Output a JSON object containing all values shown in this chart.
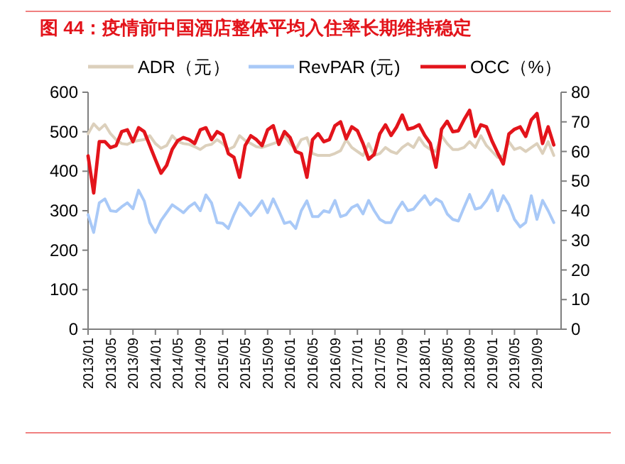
{
  "chart_data": {
    "type": "line",
    "title": "图 44：疫情前中国酒店整体平均入住率长期维持稳定",
    "categories": [
      "2013/01",
      null,
      null,
      null,
      "2013/05",
      null,
      null,
      null,
      "2013/09",
      null,
      null,
      null,
      "2014/01",
      null,
      null,
      null,
      "2014/05",
      null,
      null,
      null,
      "2014/09",
      null,
      null,
      null,
      "2015/01",
      null,
      null,
      null,
      "2015/05",
      null,
      null,
      null,
      "2015/09",
      null,
      null,
      null,
      "2016/01",
      null,
      null,
      null,
      "2016/05",
      null,
      null,
      null,
      "2016/09",
      null,
      null,
      null,
      "2017/01",
      null,
      null,
      null,
      "2017/05",
      null,
      null,
      null,
      "2017/09",
      null,
      null,
      null,
      "2018/01",
      null,
      null,
      null,
      "2018/05",
      null,
      null,
      null,
      "2018/09",
      null,
      null,
      null,
      "2019/01",
      null,
      null,
      null,
      "2019/05",
      null,
      null,
      null,
      "2019/09",
      null,
      null,
      null
    ],
    "series": [
      {
        "name": "ADR（元）",
        "color": "#dcd0bc",
        "values": [
          495,
          520,
          505,
          518,
          495,
          480,
          470,
          468,
          475,
          478,
          480,
          490,
          470,
          458,
          465,
          490,
          475,
          470,
          468,
          462,
          455,
          465,
          468,
          480,
          470,
          455,
          462,
          490,
          478,
          470,
          462,
          460,
          465,
          470,
          475,
          490,
          470,
          455,
          480,
          485,
          445,
          440,
          440,
          440,
          445,
          452,
          480,
          460,
          450,
          440,
          470,
          440,
          445,
          460,
          450,
          445,
          460,
          470,
          460,
          485,
          465,
          455,
          450,
          490,
          470,
          455,
          455,
          460,
          475,
          460,
          490,
          465,
          450,
          435,
          440,
          475,
          455,
          460,
          450,
          460,
          470,
          445,
          475,
          440
        ]
      },
      {
        "name": "RevPAR (元)",
        "color": "#a9c9f7",
        "values": [
          290,
          245,
          320,
          330,
          300,
          298,
          310,
          320,
          305,
          352,
          325,
          270,
          245,
          275,
          295,
          315,
          305,
          295,
          310,
          320,
          300,
          340,
          320,
          270,
          268,
          255,
          290,
          320,
          305,
          288,
          305,
          325,
          295,
          330,
          300,
          268,
          272,
          255,
          300,
          325,
          285,
          285,
          300,
          296,
          326,
          285,
          290,
          308,
          315,
          292,
          326,
          300,
          278,
          270,
          270,
          300,
          322,
          300,
          304,
          322,
          338,
          315,
          330,
          322,
          292,
          278,
          274,
          308,
          341,
          304,
          308,
          326,
          352,
          300,
          338,
          315,
          278,
          259,
          270,
          338,
          278,
          326,
          300,
          270
        ]
      },
      {
        "name": "OCC（%）",
        "color": "#e3141b",
        "axis": "y2",
        "values": [
          58.5,
          46,
          63.3,
          63.3,
          61.3,
          62,
          66.7,
          67.3,
          63.3,
          68,
          66.7,
          62,
          57.3,
          52.7,
          55.3,
          60.7,
          63.7,
          64.7,
          64,
          62.7,
          67.3,
          68,
          64,
          66.7,
          65.6,
          59.3,
          58,
          51.3,
          62,
          65.3,
          64,
          62,
          67.3,
          68.7,
          62.4,
          66.7,
          64.7,
          60,
          59.3,
          51.3,
          64,
          66,
          63.3,
          64,
          68.7,
          70,
          64.3,
          68.3,
          67,
          62.7,
          57.4,
          59,
          66,
          69,
          65.4,
          68.3,
          72.3,
          67.5,
          68,
          69,
          65.4,
          62.7,
          54.7,
          67.5,
          70.2,
          66.7,
          67,
          70.7,
          73.9,
          65.1,
          69,
          68.3,
          63.5,
          59.5,
          55.8,
          65.9,
          67.5,
          68.3,
          65.1,
          70.7,
          72.8,
          62.7,
          68.3,
          62.2
        ]
      }
    ],
    "ylim": [
      0,
      600
    ],
    "yticks": [
      0,
      100,
      200,
      300,
      400,
      500,
      600
    ],
    "y2lim": [
      0,
      80
    ],
    "y2ticks": [
      0,
      10,
      20,
      30,
      40,
      50,
      60,
      70,
      80
    ],
    "legend": "top",
    "grid": false,
    "marker": "none",
    "line_style": "solid"
  }
}
